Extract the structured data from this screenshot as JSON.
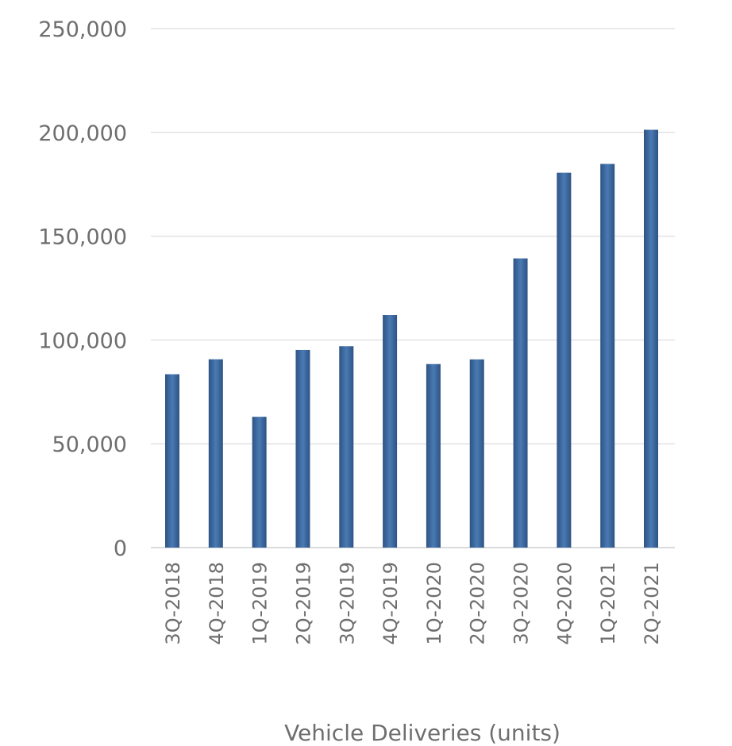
{
  "chart_data": {
    "type": "bar",
    "categories": [
      "3Q-2018",
      "4Q-2018",
      "1Q-2019",
      "2Q-2019",
      "3Q-2019",
      "4Q-2019",
      "1Q-2020",
      "2Q-2020",
      "3Q-2020",
      "4Q-2020",
      "1Q-2021",
      "2Q-2021"
    ],
    "values": [
      83500,
      90700,
      63000,
      95200,
      97000,
      112000,
      88400,
      90650,
      139300,
      180570,
      184800,
      201250
    ],
    "title": "",
    "xlabel": "Vehicle Deliveries (units)",
    "ylabel": "",
    "ylim": [
      0,
      250000
    ],
    "yticks": [
      "0",
      "50,000",
      "100,000",
      "150,000",
      "200,000",
      "250,000"
    ],
    "grid": true,
    "bar_color": "#3b6aa0",
    "bar_color_edge": "#2d5384"
  }
}
